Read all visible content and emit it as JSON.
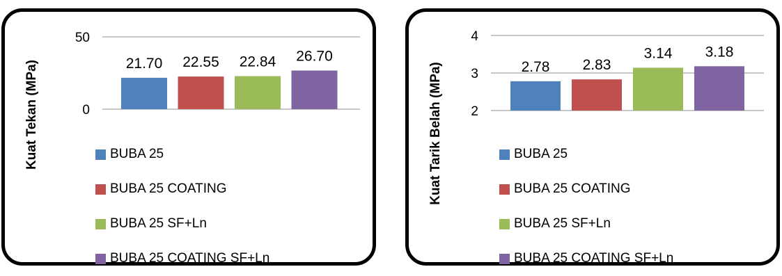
{
  "chart_data": [
    {
      "type": "bar",
      "title": "",
      "ylabel": "Kuat Tekan (MPa)",
      "xlabel": "",
      "ylim": [
        0,
        50
      ],
      "yticks": [
        0,
        50
      ],
      "grid": true,
      "legend": "bottom",
      "series": [
        {
          "name": "BUBA 25",
          "value": 21.7,
          "label": "21.70",
          "color": "#4F81BD"
        },
        {
          "name": "BUBA 25 COATING",
          "value": 22.55,
          "label": "22.55",
          "color": "#C0504D"
        },
        {
          "name": "BUBA 25 SF+Ln",
          "value": 22.84,
          "label": "22.84",
          "color": "#9BBB59"
        },
        {
          "name": "BUBA 25 COATING SF+Ln",
          "value": 26.7,
          "label": "26.70",
          "color": "#8064A2"
        }
      ]
    },
    {
      "type": "bar",
      "title": "",
      "ylabel": "Kuat Tarik Belah (MPa)",
      "xlabel": "",
      "ylim": [
        2,
        4
      ],
      "yticks": [
        2,
        3,
        4
      ],
      "grid": true,
      "legend": "bottom",
      "series": [
        {
          "name": "BUBA 25",
          "value": 2.78,
          "label": "2.78",
          "color": "#4F81BD"
        },
        {
          "name": "BUBA 25 COATING",
          "value": 2.83,
          "label": "2.83",
          "color": "#C0504D"
        },
        {
          "name": "BUBA 25 SF+Ln",
          "value": 3.14,
          "label": "3.14",
          "color": "#9BBB59"
        },
        {
          "name": "BUBA 25 COATING SF+Ln",
          "value": 3.18,
          "label": "3.18",
          "color": "#8064A2"
        }
      ]
    }
  ]
}
